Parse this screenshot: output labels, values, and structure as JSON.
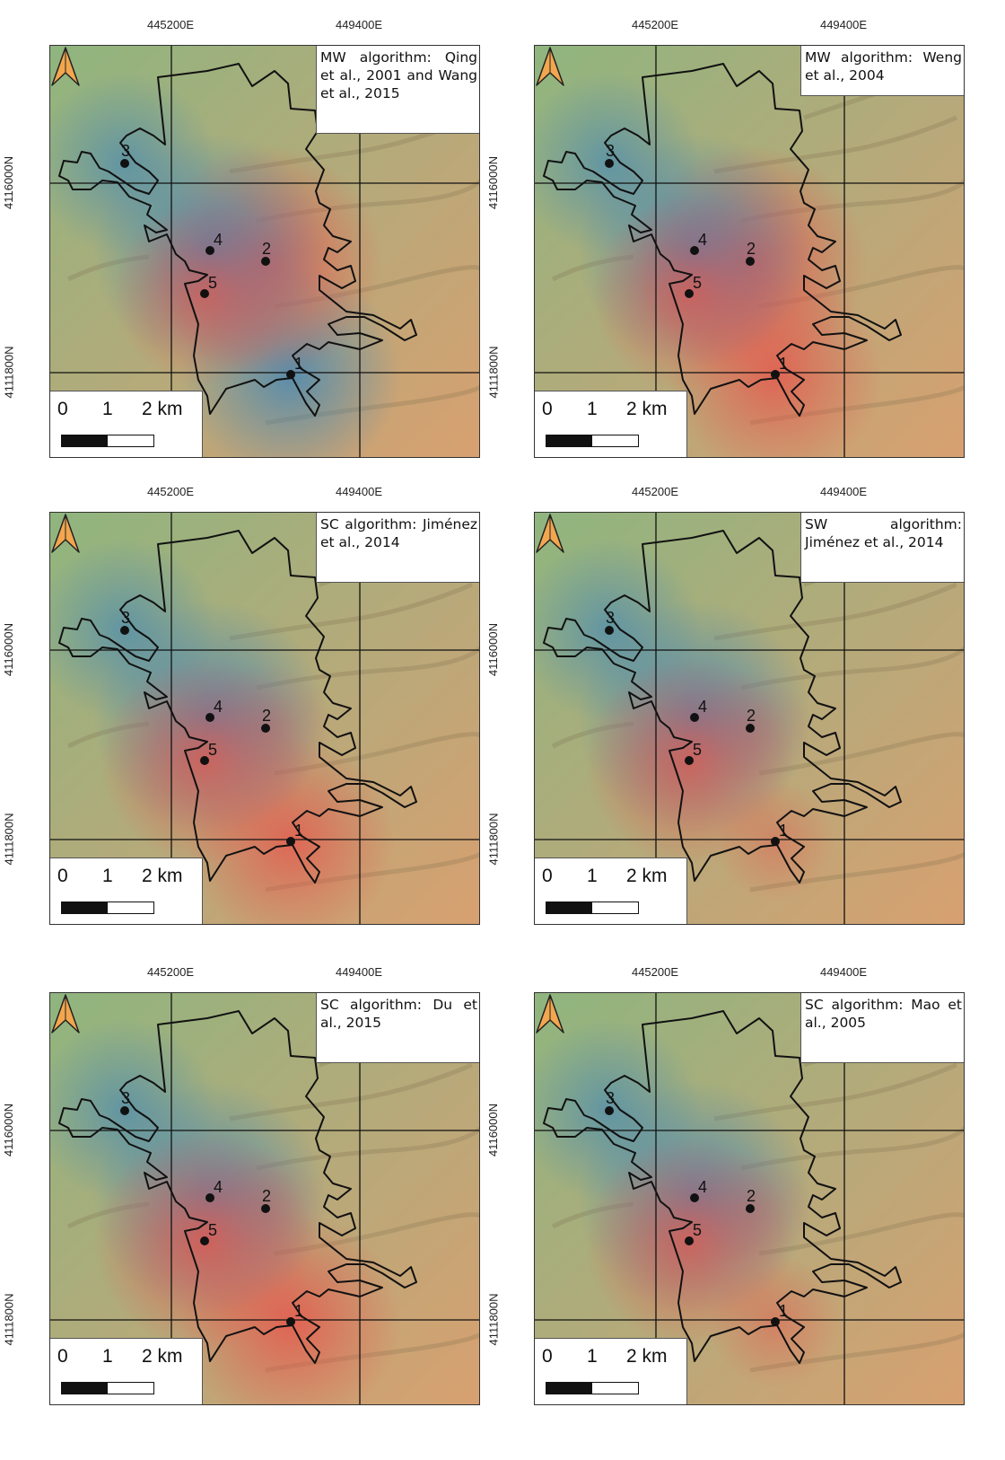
{
  "coords": {
    "easting": [
      "445200E",
      "449400E"
    ],
    "northing": [
      "4116000N",
      "4111800N"
    ]
  },
  "scale": {
    "zero": "0",
    "one": "1",
    "two": "2 km"
  },
  "points": [
    {
      "label": "1"
    },
    {
      "label": "2"
    },
    {
      "label": "3"
    },
    {
      "label": "4"
    },
    {
      "label": "5"
    }
  ],
  "panels": [
    {
      "title": "MW algorithm: Qing et al., 2001 and Wang et al., 2015"
    },
    {
      "title": "MW algorithm: Weng et al., 2004"
    },
    {
      "title": "SC algorithm: Jiménez et al., 2014"
    },
    {
      "title": "SW algorithm: Jiménez et al., 2014"
    },
    {
      "title": "SC algorithm: Du et al., 2015"
    },
    {
      "title": "SC algorithm: Mao et al., 2005"
    }
  ],
  "colors": {
    "hot": "#e8524a",
    "warm": "#d8a070",
    "cool": "#3f86b8",
    "vegetation": "#8fb57f",
    "north_arrow": "#f2a64f"
  }
}
